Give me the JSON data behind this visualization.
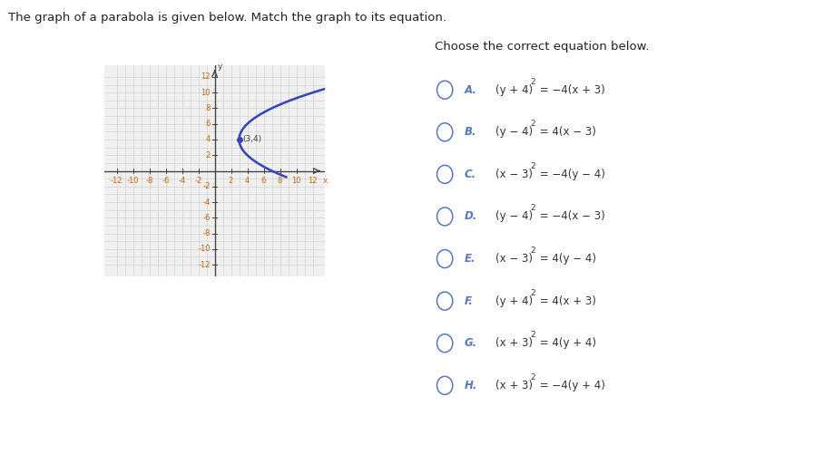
{
  "title_left": "The graph of a parabola is given below. Match the graph to its equation.",
  "title_right": "Choose the correct equation below.",
  "vertex": [
    3,
    4
  ],
  "vertex_label": "(3,4)",
  "xlim": [
    -13,
    13
  ],
  "ylim": [
    -13,
    13
  ],
  "curve_color": "#3344bb",
  "grid_color": "#cccccc",
  "axis_color": "#444444",
  "tick_color": "#cc6600",
  "background_color": "#ffffff",
  "panel_divider_color": "#cccccc",
  "top_divider_color": "#aaaaaa",
  "options": [
    {
      "label": "A.",
      "eq_parts": [
        [
          "(y + 4)",
          "2"
        ],
        [
          " = −4(x + 3)",
          ""
        ]
      ]
    },
    {
      "label": "B.",
      "eq_parts": [
        [
          "(y − 4)",
          "2"
        ],
        [
          " = 4(x − 3)",
          ""
        ]
      ]
    },
    {
      "label": "C.",
      "eq_parts": [
        [
          "(x − 3)",
          "2"
        ],
        [
          " = −4(y − 4)",
          ""
        ]
      ]
    },
    {
      "label": "D.",
      "eq_parts": [
        [
          "(y − 4)",
          "2"
        ],
        [
          " = −4(x − 3)",
          ""
        ]
      ]
    },
    {
      "label": "E.",
      "eq_parts": [
        [
          "(x − 3)",
          "2"
        ],
        [
          " = 4(y − 4)",
          ""
        ]
      ]
    },
    {
      "label": "F.",
      "eq_parts": [
        [
          "(y + 4)",
          "2"
        ],
        [
          " = 4(x + 3)",
          ""
        ]
      ]
    },
    {
      "label": "G.",
      "eq_parts": [
        [
          "(x + 3)",
          "2"
        ],
        [
          " = 4(y + 4)",
          ""
        ]
      ]
    },
    {
      "label": "H.",
      "eq_parts": [
        [
          "(x + 3)",
          "2"
        ],
        [
          " = −4(y + 4)",
          ""
        ]
      ]
    }
  ],
  "option_circle_color": "#5577cc",
  "label_color": "#5577cc",
  "eq_color": "#333333",
  "fig_width": 9.08,
  "fig_height": 5.01,
  "title_fontsize": 9.5,
  "tick_fontsize": 6.0,
  "option_fontsize": 8.5
}
